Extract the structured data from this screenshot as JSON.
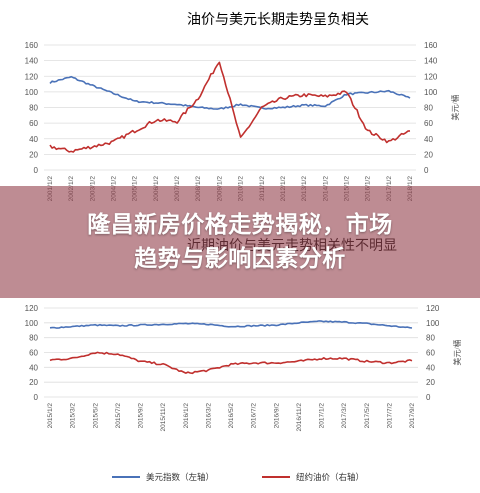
{
  "headline": {
    "line1": "隆昌新房价格走势揭秘，市场",
    "line2": "趋势与影响因素分析"
  },
  "colors": {
    "usd": "#4a72b8",
    "oil": "#c0302e",
    "overlay": "#964650",
    "grid": "#dddddd"
  },
  "chart_data": [
    {
      "type": "line",
      "title": "油价与美元长期走势呈负相关",
      "ylabel_right": "美元/桶",
      "ylim_left": [
        0,
        160
      ],
      "ylim_right": [
        0,
        160
      ],
      "yticks_left": [
        "0",
        "20",
        "40",
        "60",
        "80",
        "100",
        "120",
        "140",
        "160"
      ],
      "yticks_right": [
        "0",
        "20",
        "40",
        "60",
        "80",
        "100",
        "120",
        "140",
        "160"
      ],
      "x": [
        "2001/1/2",
        "2002/1/2",
        "2003/1/2",
        "2004/1/2",
        "2005/1/2",
        "2006/1/2",
        "2007/1/2",
        "2008/1/2",
        "2009/1/2",
        "2010/1/2",
        "2011/1/2",
        "2012/1/2",
        "2013/1/2",
        "2014/1/2",
        "2015/1/2",
        "2016/1/2",
        "2017/1/2",
        "2018/1/2"
      ],
      "series": [
        {
          "axis": "left",
          "values": [
            112,
            119,
            108,
            98,
            88,
            86,
            84,
            80,
            78,
            84,
            79,
            80,
            83,
            82,
            97,
            99,
            101,
            92
          ]
        },
        {
          "axis": "right",
          "values": [
            30,
            24,
            30,
            36,
            50,
            64,
            62,
            92,
            140,
            40,
            80,
            92,
            96,
            94,
            100,
            50,
            36,
            50
          ]
        }
      ]
    },
    {
      "type": "line",
      "title": "近期油价与美元走势相关性不明显",
      "ylabel_right": "美元/桶",
      "ylim_left": [
        0,
        120
      ],
      "ylim_right": [
        0,
        120
      ],
      "yticks_left": [
        "0",
        "20",
        "40",
        "60",
        "80",
        "100",
        "120"
      ],
      "yticks_right": [
        "0",
        "20",
        "40",
        "60",
        "80",
        "100",
        "120"
      ],
      "x": [
        "2015/1/2",
        "2015/3/2",
        "2015/5/2",
        "2015/7/2",
        "2015/9/2",
        "2015/11/2",
        "2016/1/2",
        "2016/3/2",
        "2016/5/2",
        "2016/7/2",
        "2016/9/2",
        "2016/11/2",
        "2017/1/2",
        "2017/3/2",
        "2017/5/2",
        "2017/7/2",
        "2017/9/2"
      ],
      "series": [
        {
          "name": "美元指数（左轴）",
          "axis": "left",
          "values": [
            93,
            95,
            97,
            96,
            97,
            98,
            99,
            98,
            95,
            96,
            97,
            100,
            102,
            101,
            99,
            96,
            93
          ]
        },
        {
          "name": "纽约油价（右轴）",
          "axis": "right",
          "values": [
            50,
            52,
            60,
            58,
            48,
            44,
            32,
            36,
            44,
            46,
            46,
            48,
            52,
            52,
            48,
            46,
            49
          ]
        }
      ]
    }
  ]
}
